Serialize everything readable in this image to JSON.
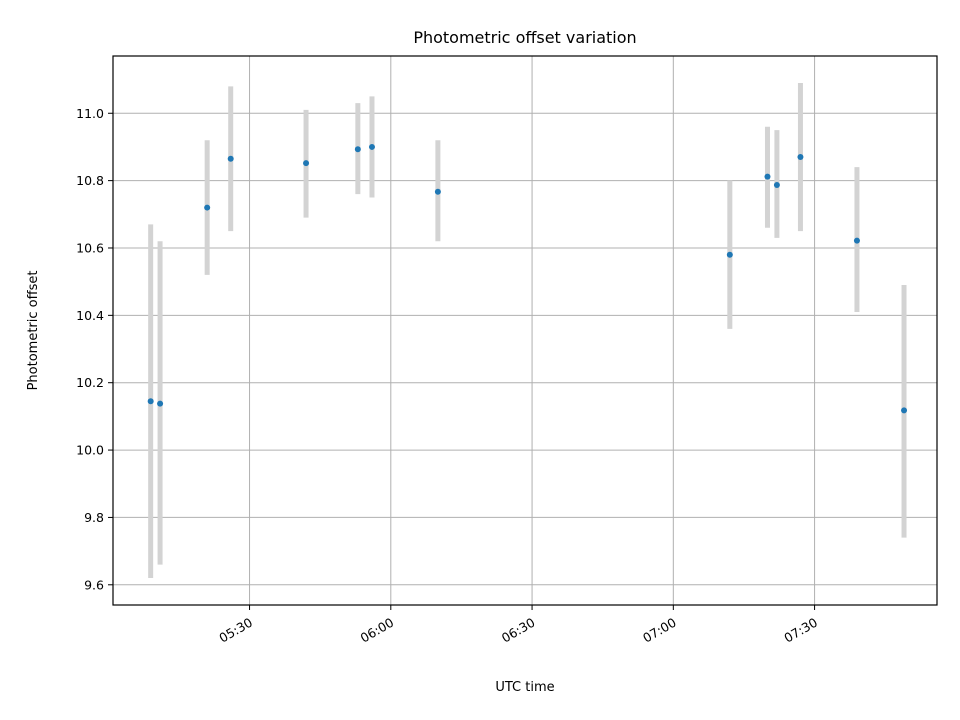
{
  "chart_data": {
    "type": "scatter",
    "title": "Photometric offset variation",
    "xlabel": "UTC time",
    "ylabel": "Photometric offset",
    "xlim": [
      "05:01",
      "07:56"
    ],
    "ylim": [
      9.54,
      11.17
    ],
    "x_ticks": [
      "05:30",
      "06:00",
      "06:30",
      "07:00",
      "07:30"
    ],
    "y_ticks": [
      "9.6",
      "9.8",
      "10.0",
      "10.2",
      "10.4",
      "10.6",
      "10.8",
      "11.0"
    ],
    "grid": true,
    "point_color": "#1f77b4",
    "errorbar_color": "#d3d3d3",
    "points": [
      {
        "x": "05:09",
        "y": 10.145,
        "err_low": 9.62,
        "err_high": 10.67
      },
      {
        "x": "05:11",
        "y": 10.138,
        "err_low": 9.66,
        "err_high": 10.62
      },
      {
        "x": "05:21",
        "y": 10.72,
        "err_low": 10.52,
        "err_high": 10.92
      },
      {
        "x": "05:26",
        "y": 10.865,
        "err_low": 10.65,
        "err_high": 11.08
      },
      {
        "x": "05:42",
        "y": 10.852,
        "err_low": 10.69,
        "err_high": 11.01
      },
      {
        "x": "05:53",
        "y": 10.893,
        "err_low": 10.76,
        "err_high": 11.03
      },
      {
        "x": "05:56",
        "y": 10.9,
        "err_low": 10.75,
        "err_high": 11.05
      },
      {
        "x": "06:10",
        "y": 10.767,
        "err_low": 10.62,
        "err_high": 10.92
      },
      {
        "x": "07:12",
        "y": 10.58,
        "err_low": 10.36,
        "err_high": 10.8
      },
      {
        "x": "07:20",
        "y": 10.812,
        "err_low": 10.66,
        "err_high": 10.96
      },
      {
        "x": "07:22",
        "y": 10.787,
        "err_low": 10.63,
        "err_high": 10.95
      },
      {
        "x": "07:27",
        "y": 10.87,
        "err_low": 10.65,
        "err_high": 11.09
      },
      {
        "x": "07:39",
        "y": 10.622,
        "err_low": 10.41,
        "err_high": 10.84
      },
      {
        "x": "07:49",
        "y": 10.118,
        "err_low": 9.74,
        "err_high": 10.49
      }
    ]
  }
}
